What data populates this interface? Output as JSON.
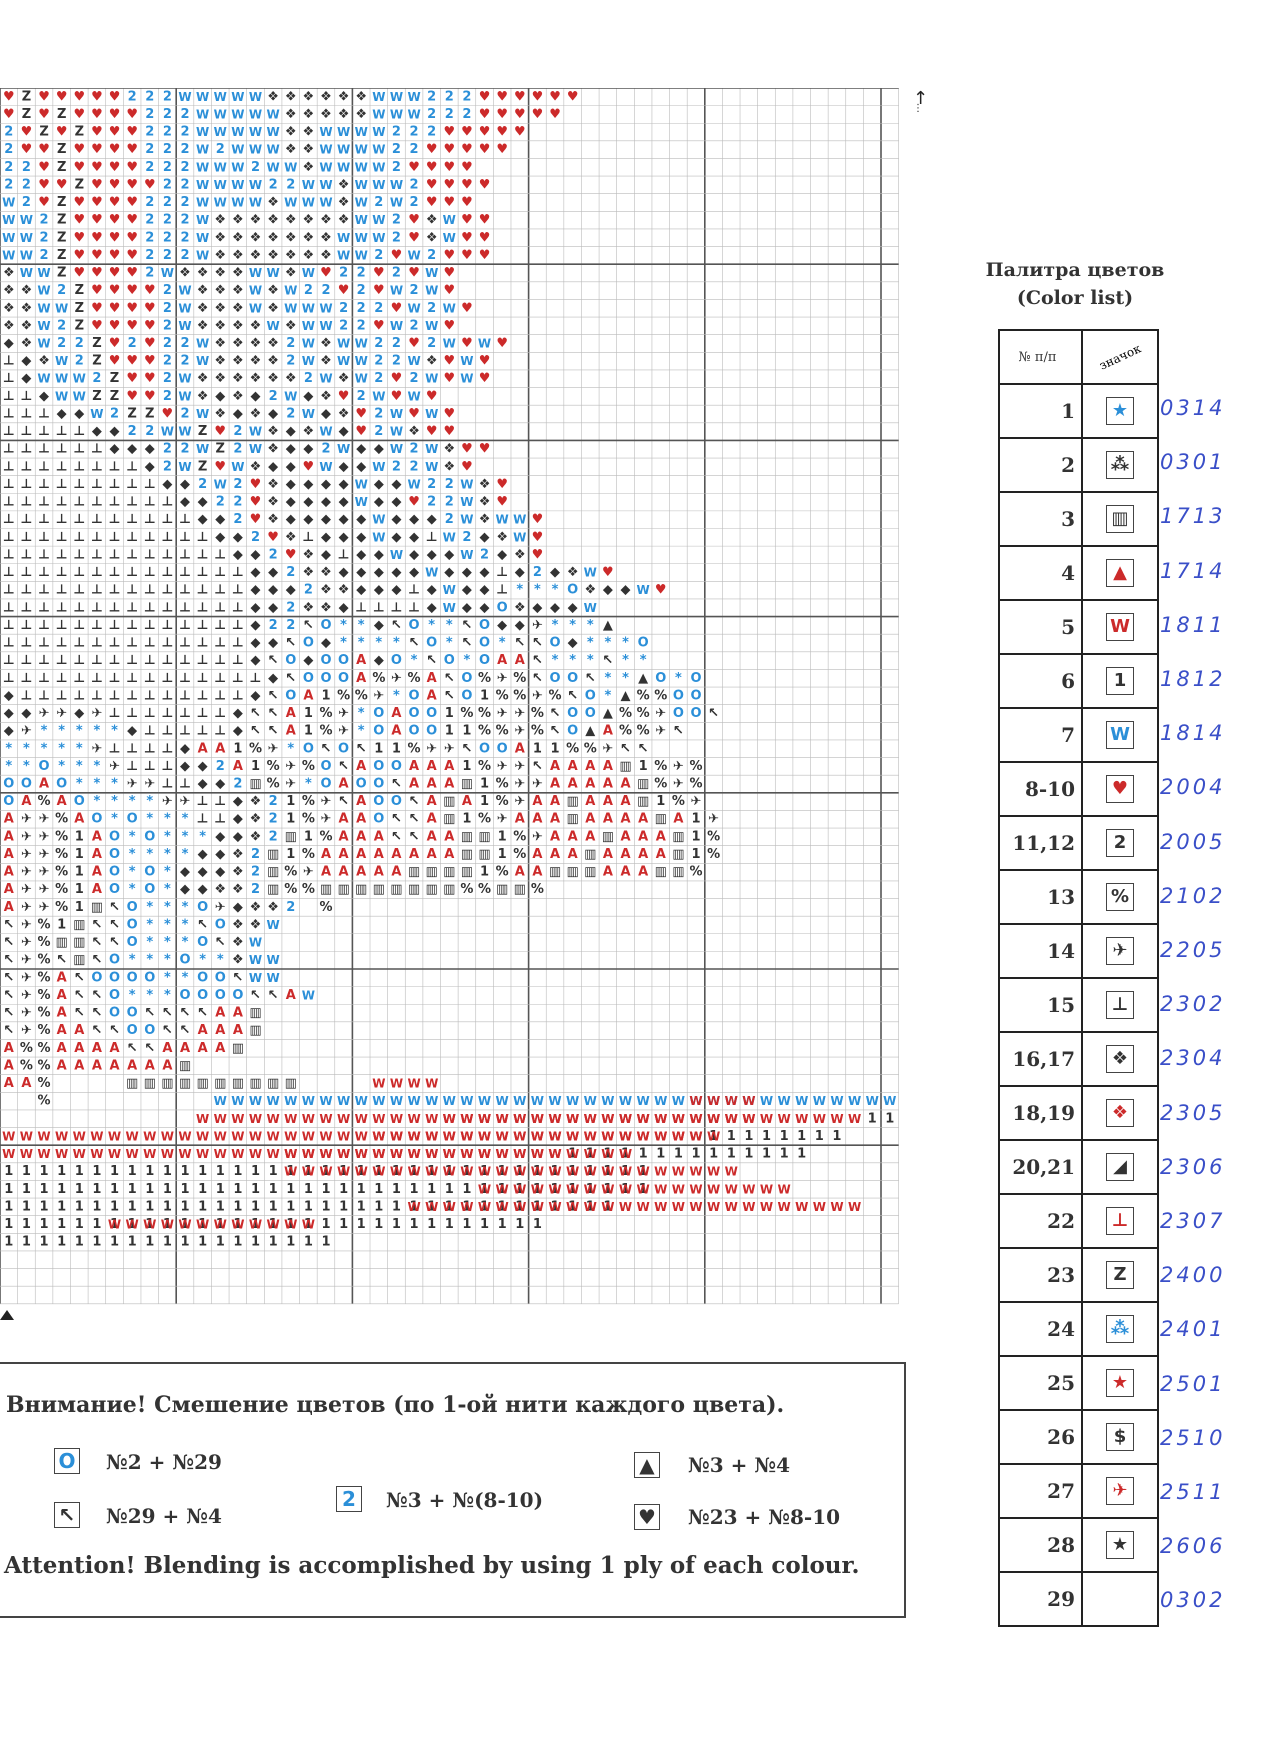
{
  "chart": {
    "rows": [
      "♥Z♥♥♥♥♥222WWWWW❖❖❖❖❖❖WWW222♥♥♥♥♥♥",
      "♥Z♥Z♥♥♥♥222WWWWW❖❖❖❖❖WWW222♥♥♥♥♥",
      "2♥Z♥Z♥♥♥222WWWWW❖❖WWWW222♥♥♥♥♥",
      "2♥♥Z♥♥♥♥222W2WWW❖❖WWWW22♥♥♥♥♥",
      "22♥Z♥♥♥♥222WWW2WW❖WWWW2♥♥♥♥",
      "22♥♥Z♥♥♥♥22WWWW22WW❖WWW2♥♥♥♥",
      "W2♥Z♥♥♥♥222WWWW❖WWW❖W2W2♥♥♥",
      "WW2Z♥♥♥♥222W❖❖❖❖❖❖❖❖WW2♥❖W♥♥",
      "WW2Z♥♥♥♥222W❖❖❖❖❖❖❖WWW2♥❖W♥♥",
      "WW2Z♥♥♥♥222W❖❖❖❖❖❖❖WW2♥W2♥♥♥",
      "❖WWZ♥♥♥♥2W❖❖❖❖WW❖W♥22♥2♥W♥",
      "❖❖W2Z♥♥♥♥2W❖❖❖W❖W22♥2♥W2W♥",
      "❖❖WWZ♥♥♥♥2W❖❖❖W❖WWW222♥W2W♥",
      "❖❖W2Z♥♥♥♥2W❖❖❖❖W❖WW22♥W2W♥",
      "◆❖W22Z♥2♥22W❖❖❖❖2W❖WW22♥2W♥W♥",
      "⊥◆❖W2Z♥♥♥22W❖❖❖❖2W❖WW22W❖♥W♥",
      "⊥◆WWW2Z♥♥2W❖❖❖❖❖❖2W❖W2♥2W♥W♥",
      "⊥⊥◆WWZZ♥♥2W❖◆❖◆2W◆❖♥2W♥W♥",
      "⊥⊥⊥◆◆W2ZZ♥2W❖◆❖◆2W◆❖♥2W♥W♥",
      "⊥⊥⊥⊥⊥◆◆22WWZ♥2W❖◆❖W◆♥2W❖♥♥",
      "⊥⊥⊥⊥⊥⊥◆◆◆22WZ2W❖◆◆2W◆◆W2W❖♥♥",
      "⊥⊥⊥⊥⊥⊥⊥⊥◆2WZ♥W❖◆◆♥W◆◆W22W❖♥",
      "⊥⊥⊥⊥⊥⊥⊥⊥⊥◆◆2W2♥❖◆◆◆◆W◆◆W22W❖♥",
      "⊥⊥⊥⊥⊥⊥⊥⊥⊥⊥◆◆22♥❖◆◆◆◆W◆◆♥22W❖♥",
      "⊥⊥⊥⊥⊥⊥⊥⊥⊥⊥⊥◆◆2♥❖◆◆◆◆◆W◆◆◆2W❖WW♥",
      "⊥⊥⊥⊥⊥⊥⊥⊥⊥⊥⊥⊥◆◆2♥❖⊥◆◆◆W◆◆⊥W2◆❖W♥",
      "⊥⊥⊥⊥⊥⊥⊥⊥⊥⊥⊥⊥⊥◆◆2♥❖◆⊥◆◆W◆◆◆W2◆❖♥",
      "⊥⊥⊥⊥⊥⊥⊥⊥⊥⊥⊥⊥⊥⊥◆◆2❖❖◆◆◆◆◆W◆◆◆⊥◆2◆❖W♥",
      "⊥⊥⊥⊥⊥⊥⊥⊥⊥⊥⊥⊥⊥⊥◆◆◆2❖❖◆◆◆⊥◆W◆◆⊥***O❖◆◆W♥",
      "⊥⊥⊥⊥⊥⊥⊥⊥⊥⊥⊥⊥⊥⊥◆◆2❖❖◆⊥⊥⊥⊥◆W◆◆O❖◆◆◆W",
      "⊥⊥⊥⊥⊥⊥⊥⊥⊥⊥⊥⊥⊥⊥◆22↖O**◆↖O**↖O◆◆✈***▲",
      "⊥⊥⊥⊥⊥⊥⊥⊥⊥⊥⊥⊥⊥⊥◆◆↖O◆****↖O*↖O*↖↖O◆***O",
      "⊥⊥⊥⊥⊥⊥⊥⊥⊥⊥⊥⊥⊥⊥◆↖O◆OOA◆O*↖O*OAA↖***↖**",
      "⊥⊥⊥⊥⊥⊥⊥⊥⊥⊥⊥⊥⊥⊥⊥◆↖OOOA%✈%A↖O%✈%↖OO↖**▲O*O",
      "◆⊥⊥⊥⊥⊥⊥⊥⊥⊥⊥⊥⊥⊥◆↖OA1%%✈*OA↖O1%%✈%↖O*▲%%OO",
      "◆◆✈✈◆✈⊥⊥⊥⊥⊥⊥⊥◆↖↖A1%✈*OAOO1%%✈✈%↖OO▲%%✈OO↖",
      "◆✈*****◆⊥⊥⊥⊥⊥◆↖↖A1%✈*OAOO11%%✈%↖O▲A%%✈↖",
      "*****✈⊥⊥⊥⊥◆AA1%✈*O↖O↖11%✈✈↖OOA11%%✈↖↖",
      "**O***✈⊥⊥⊥◆◆2A1%✈%O↖AOOAAA1%✈✈↖AAAA▥1%✈%",
      "OOAO***✈✈⊥⊥◆◆2▥%✈*OAOO↖AAA▥1%✈✈AAAAA▥%✈%",
      "OA%AO****✈✈⊥⊥◆❖21%✈↖AOO↖A▥A1%✈AA▥AAA▥1%✈",
      "A✈✈%AO*O***⊥⊥◆❖21%✈AAO↖↖A▥1%✈AAA▥AAAA▥A1✈",
      "A✈✈%1AO*O***◆◆❖2▥1%AAA↖↖AA▥▥1%✈AAA▥AAA▥1%",
      "A✈✈%1AO****◆◆❖2▥1%AAAAAAAA▥▥1%AAA▥AAAA▥1%",
      "A✈✈%1AO*O*◆◆◆❖2▥%✈AAAAA▥▥▥▥1%AA▥▥▥AAA▥▥%",
      "A✈✈%1AO*O*◆◆❖❖2▥%%▥▥▥▥▥▥▥▥%%▥▥%",
      "A✈✈%1▥↖O***O✈◆❖❖2 %",
      "↖✈%1▥↖↖O***↖O❖❖W",
      "↖✈%▥▥↖↖O***O↖❖W",
      "↖✈%↖▥↖O***O**❖WW",
      "↖✈%A↖OOOO**OO↖WW",
      "↖✈%A↖↖O***OOOO↖↖AW",
      "↖✈%A↖↖OO↖↖↖↖AA▥",
      "↖✈%AA↖↖OO↖↖AAA▥",
      "A%%AAAA↖↖AAAA▥",
      "A%%AAAAAAA▥",
      "AA%    ▥▥▥▥▥▥▥▥▥▥",
      "  %         WWWWWWWWWWWWWWWWWWWWWWWWWWWWWWWWWWWWWWWWWWW",
      "           WWWWWWWWWWWWWWWWWWWWWWWWWWWWWWWWWWWWWW111111",
      "WWWWWWWWWWWWWWWWWWWWWWWWWWWWWWWWWWWWWWWW11111111",
      "WWWWWWWWWWWWWWWWWWWWWWWWWWWWWWWW11111111111111",
      "1111111111111111111111111111111111111",
      "1111111111111111111111111111111111111",
      "11111111111111111111111111111111111",
      "1111111111111111111111111111111",
      "1111111111111111111",
      ""
    ],
    "overlay": [
      {
        "r": 56,
        "c": 21,
        "text": "WWWW"
      },
      {
        "r": 57,
        "c": 39,
        "text": "WWWW"
      },
      {
        "r": 58,
        "c": 25,
        "text": "WWWWWWWWWWWWWWWWWW"
      },
      {
        "r": 59,
        "c": 21,
        "text": "WWWWWWWWWWWWWWWWWWWW"
      },
      {
        "r": 60,
        "c": 16,
        "text": "WWWWWWWWWWWWWWWWWWWW"
      },
      {
        "r": 61,
        "c": 16,
        "text": "WWWWWWWWWWWWWWWWWWWWWWWWWW"
      },
      {
        "r": 62,
        "c": 27,
        "text": "WWWWWWWWWWWWWWWWWW"
      },
      {
        "r": 63,
        "c": 23,
        "text": "WWWWWWWWWWWWWWWWWWWWWWWWWW"
      },
      {
        "r": 64,
        "c": 6,
        "text": "WWWWWWWWWWWW"
      }
    ]
  },
  "palette": {
    "title_ru": "Палитра цветов",
    "title_en": "(Color list)",
    "header_num": "№ п/п",
    "header_sym": "значок",
    "rows": [
      {
        "num": "1",
        "symbol": "★",
        "color": "#2b8fd8",
        "code": "0314"
      },
      {
        "num": "2",
        "symbol": "⁂",
        "color": "#333333",
        "code": "0301"
      },
      {
        "num": "3",
        "symbol": "▥",
        "color": "#333333",
        "code": "1713"
      },
      {
        "num": "4",
        "symbol": "▲",
        "color": "#cc2a2a",
        "code": "1714"
      },
      {
        "num": "5",
        "symbol": "W",
        "color": "#cc2a2a",
        "code": "1811"
      },
      {
        "num": "6",
        "symbol": "1",
        "color": "#333333",
        "code": "1812"
      },
      {
        "num": "7",
        "symbol": "W",
        "color": "#2b8fd8",
        "code": "1814"
      },
      {
        "num": "8-10",
        "symbol": "♥",
        "color": "#cc2a2a",
        "code": "2004"
      },
      {
        "num": "11,12",
        "symbol": "2",
        "color": "#333333",
        "code": "2005"
      },
      {
        "num": "13",
        "symbol": "%",
        "color": "#333333",
        "code": "2102"
      },
      {
        "num": "14",
        "symbol": "✈",
        "color": "#333333",
        "code": "2205"
      },
      {
        "num": "15",
        "symbol": "⊥",
        "color": "#333333",
        "code": "2302"
      },
      {
        "num": "16,17",
        "symbol": "❖",
        "color": "#333333",
        "code": "2304"
      },
      {
        "num": "18,19",
        "symbol": "❖",
        "color": "#cc2a2a",
        "code": "2305"
      },
      {
        "num": "20,21",
        "symbol": "◢",
        "color": "#333333",
        "code": "2306"
      },
      {
        "num": "22",
        "symbol": "⊥",
        "color": "#cc2a2a",
        "code": "2307"
      },
      {
        "num": "23",
        "symbol": "Z",
        "color": "#333333",
        "code": "2400"
      },
      {
        "num": "24",
        "symbol": "⁂",
        "color": "#2b8fd8",
        "code": "2401"
      },
      {
        "num": "25",
        "symbol": "★",
        "color": "#cc2a2a",
        "code": "2501"
      },
      {
        "num": "26",
        "symbol": "$",
        "color": "#333333",
        "code": "2510"
      },
      {
        "num": "27",
        "symbol": "✈",
        "color": "#cc2a2a",
        "code": "2511"
      },
      {
        "num": "28",
        "symbol": "★",
        "color": "#333333",
        "code": "2606"
      },
      {
        "num": "29",
        "symbol": "",
        "color": "#333333",
        "code": "0302"
      }
    ]
  },
  "attention": {
    "ru": "Внимание!   Смешение цветов (по 1-ой нити каждого цвета).",
    "en": "Attention!   Blending  is accomplished   by using 1 ply of each colour.",
    "blends": [
      {
        "icon": "O",
        "icon_color": "#2b8fd8",
        "text": "№2 + №29"
      },
      {
        "icon": "▲",
        "icon_color": "#333333",
        "text": "№3 + №4"
      },
      {
        "icon": "↖",
        "icon_color": "#333333",
        "text": "№29 + №4"
      },
      {
        "icon": "2",
        "icon_color": "#2b8fd8",
        "text": "№3 + №(8-10)"
      },
      {
        "icon": "♥",
        "icon_color": "#333333",
        "text": "№23 + №8-10"
      }
    ]
  },
  "colors": {
    "red": "#cc2a2a",
    "blue": "#2b8fd8",
    "dark": "#333333"
  }
}
